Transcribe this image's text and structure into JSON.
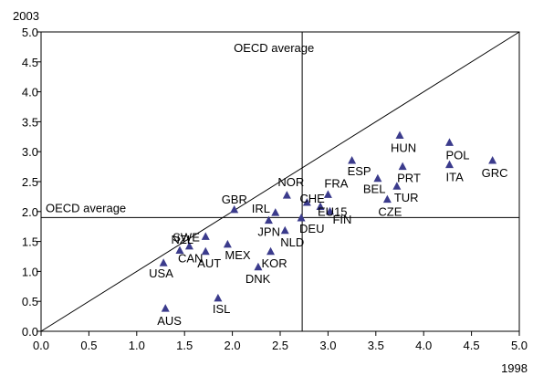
{
  "chart_data": {
    "type": "scatter",
    "title": "",
    "xlabel": "1998",
    "ylabel": "2003",
    "xlim": [
      0,
      5
    ],
    "ylim": [
      0,
      5
    ],
    "xticks": [
      "0.0",
      "0.5",
      "1.0",
      "1.5",
      "2.0",
      "2.5",
      "3.0",
      "3.5",
      "4.0",
      "4.5",
      "5.0"
    ],
    "yticks": [
      "0.0",
      "0.5",
      "1.0",
      "1.5",
      "2.0",
      "2.5",
      "3.0",
      "3.5",
      "4.0",
      "4.5",
      "5.0"
    ],
    "grid": false,
    "marker": "triangle",
    "marker_color": "#3b3b8c",
    "diagonal": {
      "from": [
        0,
        0
      ],
      "to": [
        5,
        5
      ]
    },
    "reference_lines": {
      "vertical": {
        "x": 2.73,
        "label": "OECD average"
      },
      "horizontal": {
        "y": 1.9,
        "label": "OECD average"
      }
    },
    "points": [
      {
        "label": "AUS",
        "x": 1.3,
        "y": 0.38
      },
      {
        "label": "ISL",
        "x": 1.85,
        "y": 0.55
      },
      {
        "label": "USA",
        "x": 1.28,
        "y": 1.14
      },
      {
        "label": "CAN",
        "x": 1.45,
        "y": 1.35
      },
      {
        "label": "NZL",
        "x": 1.55,
        "y": 1.42
      },
      {
        "label": "AUT",
        "x": 1.72,
        "y": 1.33
      },
      {
        "label": "SWE",
        "x": 1.72,
        "y": 1.58
      },
      {
        "label": "MEX",
        "x": 1.95,
        "y": 1.45
      },
      {
        "label": "DNK",
        "x": 2.27,
        "y": 1.07
      },
      {
        "label": "KOR",
        "x": 2.4,
        "y": 1.33
      },
      {
        "label": "JPN",
        "x": 2.38,
        "y": 1.85
      },
      {
        "label": "NLD",
        "x": 2.55,
        "y": 1.68
      },
      {
        "label": "GBR",
        "x": 2.02,
        "y": 2.03
      },
      {
        "label": "IRL",
        "x": 2.45,
        "y": 1.98
      },
      {
        "label": "NOR",
        "x": 2.57,
        "y": 2.27
      },
      {
        "label": "DEU",
        "x": 2.72,
        "y": 1.89
      },
      {
        "label": "CHE",
        "x": 2.78,
        "y": 2.15
      },
      {
        "label": "EU15",
        "x": 2.92,
        "y": 2.08
      },
      {
        "label": "FIN",
        "x": 3.02,
        "y": 2.0
      },
      {
        "label": "FRA",
        "x": 3.0,
        "y": 2.28
      },
      {
        "label": "ESP",
        "x": 3.25,
        "y": 2.85
      },
      {
        "label": "BEL",
        "x": 3.52,
        "y": 2.55
      },
      {
        "label": "CZE",
        "x": 3.62,
        "y": 2.2
      },
      {
        "label": "TUR",
        "x": 3.72,
        "y": 2.42
      },
      {
        "label": "PRT",
        "x": 3.78,
        "y": 2.75
      },
      {
        "label": "HUN",
        "x": 3.75,
        "y": 3.27
      },
      {
        "label": "POL",
        "x": 4.27,
        "y": 3.15
      },
      {
        "label": "ITA",
        "x": 4.27,
        "y": 2.78
      },
      {
        "label": "GRC",
        "x": 4.72,
        "y": 2.85
      }
    ]
  }
}
